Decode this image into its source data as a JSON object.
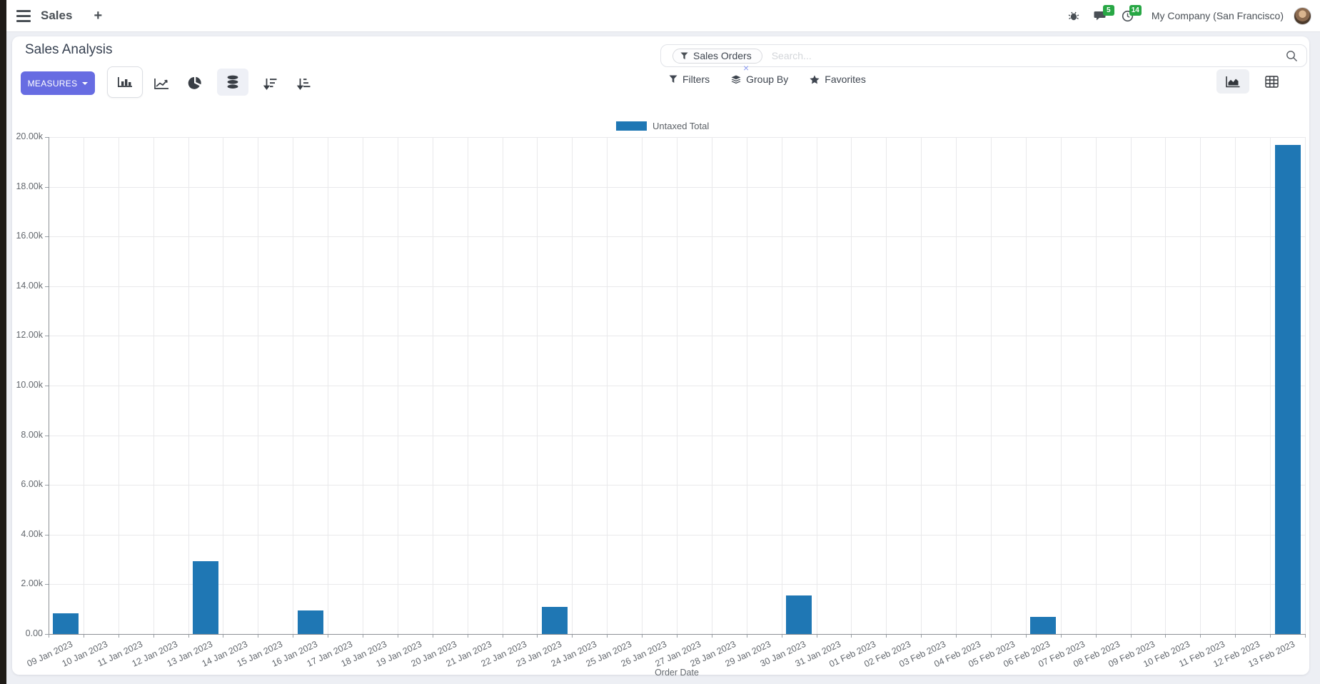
{
  "navbar": {
    "app_name": "Sales",
    "plus_label": "+",
    "messages_badge": "5",
    "activities_badge": "14",
    "company": "My Company (San Francisco)"
  },
  "control_panel": {
    "title": "Sales Analysis",
    "measures_label": "MEASURES",
    "search": {
      "facet_label": "Sales Orders",
      "placeholder": "Search...",
      "facet_remove": "×"
    },
    "filters_label": "Filters",
    "group_by_label": "Group By",
    "favorites_label": "Favorites"
  },
  "colors": {
    "bar_blue": "#1f77b4",
    "badge_green": "#28a745",
    "primary_button": "#676ce2"
  },
  "chart_data": {
    "type": "bar",
    "title": "",
    "legend": [
      "Untaxed Total"
    ],
    "legend_position": "top-center",
    "xlabel": "Order Date",
    "ylabel": "",
    "ylim": [
      0,
      20000
    ],
    "ytick_step": 2000,
    "ytick_labels": [
      "0.00",
      "2.00k",
      "4.00k",
      "6.00k",
      "8.00k",
      "10.00k",
      "12.00k",
      "14.00k",
      "16.00k",
      "18.00k",
      "20.00k"
    ],
    "grid": true,
    "categories": [
      "09 Jan 2023",
      "10 Jan 2023",
      "11 Jan 2023",
      "12 Jan 2023",
      "13 Jan 2023",
      "14 Jan 2023",
      "15 Jan 2023",
      "16 Jan 2023",
      "17 Jan 2023",
      "18 Jan 2023",
      "19 Jan 2023",
      "20 Jan 2023",
      "21 Jan 2023",
      "22 Jan 2023",
      "23 Jan 2023",
      "24 Jan 2023",
      "25 Jan 2023",
      "26 Jan 2023",
      "27 Jan 2023",
      "28 Jan 2023",
      "29 Jan 2023",
      "30 Jan 2023",
      "31 Jan 2023",
      "01 Feb 2023",
      "02 Feb 2023",
      "03 Feb 2023",
      "04 Feb 2023",
      "05 Feb 2023",
      "06 Feb 2023",
      "07 Feb 2023",
      "08 Feb 2023",
      "09 Feb 2023",
      "10 Feb 2023",
      "11 Feb 2023",
      "12 Feb 2023",
      "13 Feb 2023"
    ],
    "series": [
      {
        "name": "Untaxed Total",
        "color": "#1f77b4",
        "values": [
          830,
          0,
          0,
          0,
          2940,
          0,
          0,
          940,
          0,
          0,
          0,
          0,
          0,
          0,
          1085,
          0,
          0,
          0,
          0,
          0,
          0,
          1540,
          0,
          0,
          0,
          0,
          0,
          0,
          685,
          0,
          0,
          0,
          0,
          0,
          0,
          19676
        ]
      }
    ]
  }
}
